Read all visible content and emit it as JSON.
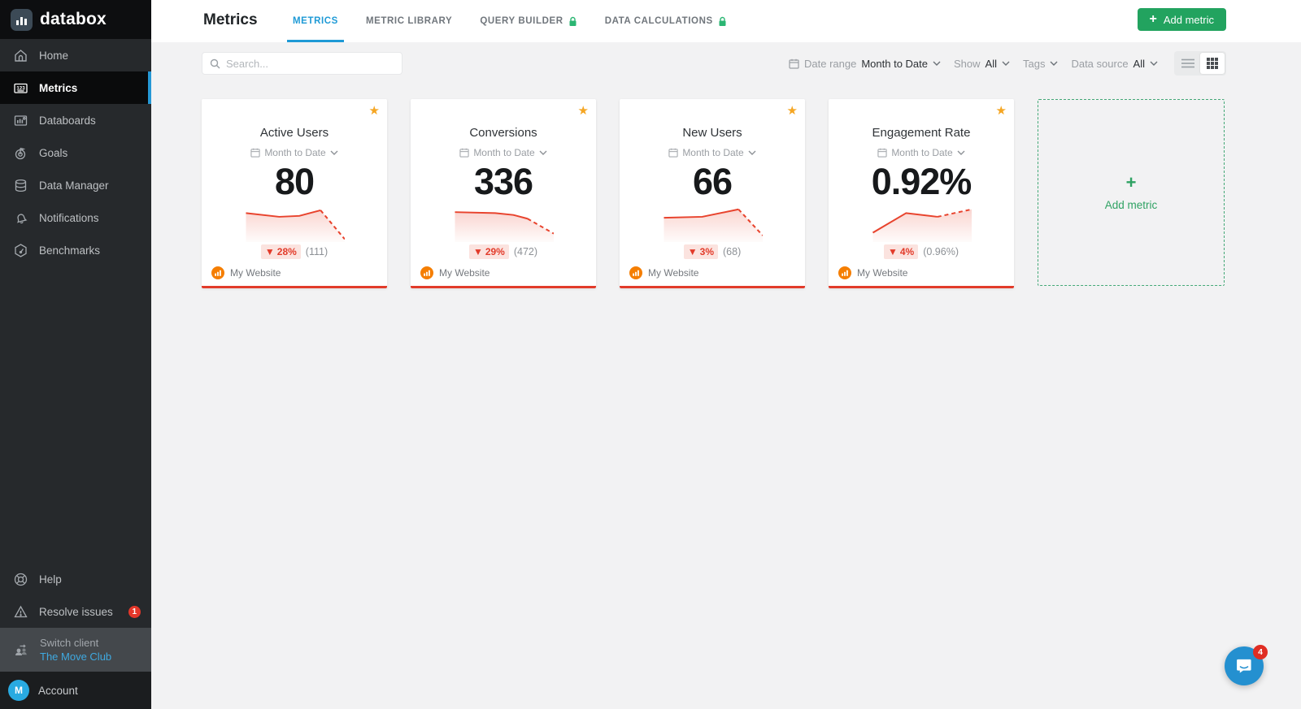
{
  "colors": {
    "accent_blue": "#1e9ad6",
    "button_green": "#22a35f",
    "metric_red": "#e23b2a",
    "star_orange": "#f5a623",
    "source_orange": "#f57e02",
    "chat_blue": "#2490d0",
    "sidebar_bg": "#26292c"
  },
  "sidebar": {
    "logo_text": "databox",
    "nav": [
      {
        "label": "Home"
      },
      {
        "label": "Metrics"
      },
      {
        "label": "Databoards"
      },
      {
        "label": "Goals"
      },
      {
        "label": "Data Manager"
      },
      {
        "label": "Notifications"
      },
      {
        "label": "Benchmarks"
      }
    ],
    "bottom": {
      "help_label": "Help",
      "resolve_label": "Resolve issues",
      "resolve_badge": "1",
      "switch_client_label": "Switch client",
      "switch_client_value": "The Move Club",
      "account_label": "Account",
      "account_avatar": "M"
    }
  },
  "header": {
    "title": "Metrics",
    "tabs": [
      {
        "label": "METRICS",
        "active": true,
        "locked": false
      },
      {
        "label": "METRIC LIBRARY",
        "active": false,
        "locked": false
      },
      {
        "label": "QUERY BUILDER",
        "active": false,
        "locked": true
      },
      {
        "label": "DATA CALCULATIONS",
        "active": false,
        "locked": true
      }
    ],
    "add_button": {
      "icon": "plus-icon",
      "label": "Add metric",
      "plus": "+"
    }
  },
  "toolbar": {
    "search_placeholder": "Search...",
    "date_range_label": "Date range",
    "date_range_value": "Month to Date",
    "show_label": "Show",
    "show_value": "All",
    "tags_label": "Tags",
    "data_source_label": "Data source",
    "data_source_value": "All",
    "view_modes": [
      "list",
      "grid"
    ],
    "active_view": "grid"
  },
  "cards": [
    {
      "title": "Active Users",
      "period": "Month to Date",
      "value": "80",
      "change_arrow": "▼",
      "change_pct": "28%",
      "change_prev": "(111)",
      "source": "My Website",
      "starred": true,
      "sparkline": {
        "solid": [
          [
            2,
            9
          ],
          [
            35,
            13
          ],
          [
            55,
            12
          ],
          [
            76,
            6
          ]
        ],
        "dashed": [
          [
            76,
            6
          ],
          [
            100,
            37
          ]
        ]
      }
    },
    {
      "title": "Conversions",
      "period": "Month to Date",
      "value": "336",
      "change_arrow": "▼",
      "change_pct": "29%",
      "change_prev": "(472)",
      "source": "My Website",
      "starred": true,
      "sparkline": {
        "solid": [
          [
            2,
            8
          ],
          [
            42,
            9
          ],
          [
            60,
            11
          ],
          [
            74,
            15
          ]
        ],
        "dashed": [
          [
            74,
            15
          ],
          [
            100,
            31
          ]
        ]
      }
    },
    {
      "title": "New Users",
      "period": "Month to Date",
      "value": "66",
      "change_arrow": "▼",
      "change_pct": "3%",
      "change_prev": "(68)",
      "source": "My Website",
      "starred": true,
      "sparkline": {
        "solid": [
          [
            2,
            14
          ],
          [
            40,
            13
          ],
          [
            76,
            5
          ]
        ],
        "dashed": [
          [
            76,
            5
          ],
          [
            100,
            33
          ]
        ]
      }
    },
    {
      "title": "Engagement Rate",
      "period": "Month to Date",
      "value": "0.92%",
      "change_arrow": "▼",
      "change_pct": "4%",
      "change_prev": "(0.96%)",
      "source": "My Website",
      "starred": true,
      "sparkline": {
        "solid": [
          [
            2,
            30
          ],
          [
            35,
            9
          ],
          [
            66,
            13
          ]
        ],
        "dashed": [
          [
            66,
            13
          ],
          [
            100,
            5
          ]
        ]
      }
    }
  ],
  "add_metric_card": {
    "plus": "+",
    "label": "Add metric"
  },
  "chat": {
    "badge": "4"
  }
}
